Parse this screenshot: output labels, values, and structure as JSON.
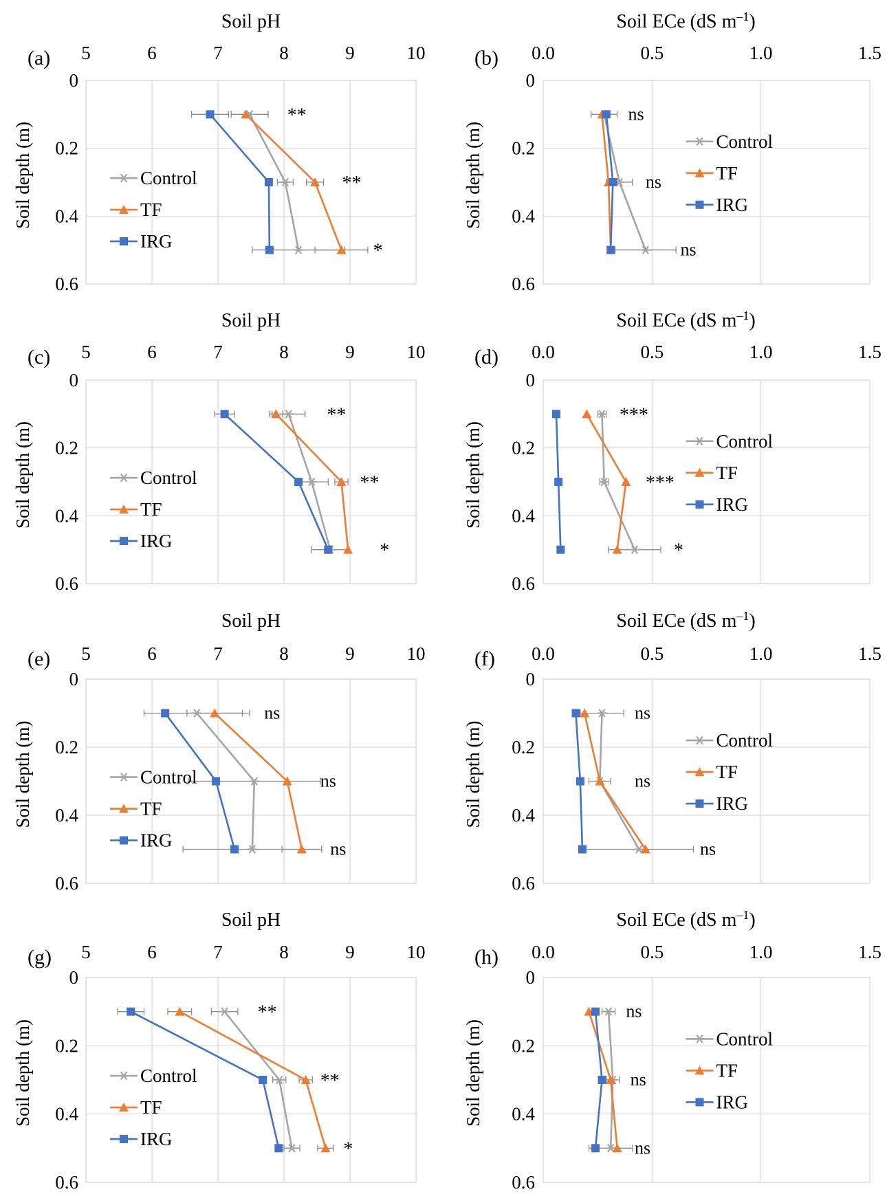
{
  "figure": {
    "colors": {
      "control": "#a5a5a5",
      "tf": "#ed7d31",
      "irg": "#4472c4",
      "grid": "#d9d9d9",
      "frame": "#d9d9d9",
      "errorbar": "#8c8c8c"
    },
    "legend": {
      "control": "Control",
      "tf": "TF",
      "irg": "IRG"
    },
    "common": {
      "ylabel": "Soil depth (m)",
      "y_range": [
        0,
        0.6
      ],
      "y_ticks": [
        "0",
        "0.2",
        "0.4",
        "0.6"
      ],
      "depths": [
        0.1,
        0.3,
        0.5
      ]
    }
  },
  "chart_data": [
    {
      "panel": "(a)",
      "type": "line",
      "title": "Soil pH",
      "xlim": [
        5,
        10
      ],
      "x_ticks": [
        "5",
        "6",
        "7",
        "8",
        "9",
        "10"
      ],
      "legend_position": "left-bottom",
      "series": [
        {
          "name": "Control",
          "x": [
            7.48,
            8.02,
            8.22
          ],
          "err": [
            0.28,
            0.12,
            0.7
          ]
        },
        {
          "name": "TF",
          "x": [
            7.42,
            8.47,
            8.87
          ],
          "err": [
            0.0,
            0.13,
            0.4
          ]
        },
        {
          "name": "IRG",
          "x": [
            6.88,
            7.77,
            7.78
          ],
          "err": [
            0.28,
            0.0,
            0.0
          ]
        }
      ],
      "annotations": [
        {
          "depth": 0.1,
          "x": 8.05,
          "text": "**"
        },
        {
          "depth": 0.3,
          "x": 8.88,
          "text": "**"
        },
        {
          "depth": 0.5,
          "x": 9.35,
          "text": "*"
        }
      ]
    },
    {
      "panel": "(b)",
      "type": "line",
      "title": "Soil ECe (dS m",
      "title_sup": "–1",
      "title_end": ")",
      "xlim": [
        0,
        1.5
      ],
      "x_ticks": [
        "0.0",
        "0.5",
        "1.0",
        "1.5"
      ],
      "legend_position": "right-top",
      "series": [
        {
          "name": "Control",
          "x": [
            0.28,
            0.35,
            0.47
          ],
          "err": [
            0.06,
            0.06,
            0.14
          ]
        },
        {
          "name": "TF",
          "x": [
            0.27,
            0.3,
            0.31
          ],
          "err": [
            0.0,
            0.0,
            0.0
          ]
        },
        {
          "name": "IRG",
          "x": [
            0.29,
            0.32,
            0.31
          ],
          "err": [
            0.0,
            0.0,
            0.0
          ]
        }
      ],
      "annotations": [
        {
          "depth": 0.1,
          "x": 0.39,
          "text": "ns"
        },
        {
          "depth": 0.3,
          "x": 0.47,
          "text": "ns"
        },
        {
          "depth": 0.5,
          "x": 0.63,
          "text": "ns"
        }
      ]
    },
    {
      "panel": "(c)",
      "type": "line",
      "title": "Soil pH",
      "xlim": [
        5,
        10
      ],
      "x_ticks": [
        "5",
        "6",
        "7",
        "8",
        "9",
        "10"
      ],
      "legend_position": "left-bottom",
      "series": [
        {
          "name": "Control",
          "x": [
            8.07,
            8.42,
            8.7
          ],
          "err": [
            0.25,
            0.25,
            0.28
          ]
        },
        {
          "name": "TF",
          "x": [
            7.88,
            8.87,
            8.97
          ],
          "err": [
            0.1,
            0.1,
            0.0
          ]
        },
        {
          "name": "IRG",
          "x": [
            7.1,
            8.22,
            8.67
          ],
          "err": [
            0.15,
            0.0,
            0.0
          ]
        }
      ],
      "annotations": [
        {
          "depth": 0.1,
          "x": 8.65,
          "text": "**"
        },
        {
          "depth": 0.3,
          "x": 9.15,
          "text": "**"
        },
        {
          "depth": 0.5,
          "x": 9.45,
          "text": "*"
        }
      ]
    },
    {
      "panel": "(d)",
      "type": "line",
      "title": "Soil ECe (dS m",
      "title_sup": "–1",
      "title_end": ")",
      "xlim": [
        0,
        1.5
      ],
      "x_ticks": [
        "0.0",
        "0.5",
        "1.0",
        "1.5"
      ],
      "legend_position": "right-top",
      "series": [
        {
          "name": "Control",
          "x": [
            0.27,
            0.28,
            0.42
          ],
          "err": [
            0.02,
            0.02,
            0.12
          ]
        },
        {
          "name": "TF",
          "x": [
            0.2,
            0.38,
            0.34
          ],
          "err": [
            0.0,
            0.0,
            0.0
          ]
        },
        {
          "name": "IRG",
          "x": [
            0.06,
            0.07,
            0.08
          ],
          "err": [
            0.0,
            0.0,
            0.0
          ]
        }
      ],
      "annotations": [
        {
          "depth": 0.1,
          "x": 0.35,
          "text": "***"
        },
        {
          "depth": 0.3,
          "x": 0.47,
          "text": "***"
        },
        {
          "depth": 0.5,
          "x": 0.6,
          "text": "*"
        }
      ]
    },
    {
      "panel": "(e)",
      "type": "line",
      "title": "Soil pH",
      "xlim": [
        5,
        10
      ],
      "x_ticks": [
        "5",
        "6",
        "7",
        "8",
        "9",
        "10"
      ],
      "legend_position": "left-bottom",
      "series": [
        {
          "name": "Control",
          "x": [
            6.68,
            7.55,
            7.52
          ],
          "err": [
            0.8,
            1.0,
            1.05
          ]
        },
        {
          "name": "TF",
          "x": [
            6.95,
            8.05,
            8.27
          ],
          "err": [
            0.42,
            0.0,
            0.3
          ]
        },
        {
          "name": "IRG",
          "x": [
            6.2,
            6.97,
            7.25
          ],
          "err": [
            0.0,
            0.0,
            0.0
          ]
        }
      ],
      "annotations": [
        {
          "depth": 0.1,
          "x": 7.7,
          "text": "ns"
        },
        {
          "depth": 0.3,
          "x": 8.55,
          "text": "ns"
        },
        {
          "depth": 0.5,
          "x": 8.7,
          "text": "ns"
        }
      ]
    },
    {
      "panel": "(f)",
      "type": "line",
      "title": "Soil ECe (dS m",
      "title_sup": "–1",
      "title_end": ")",
      "xlim": [
        0,
        1.5
      ],
      "x_ticks": [
        "0.0",
        "0.5",
        "1.0",
        "1.5"
      ],
      "legend_position": "right-top",
      "series": [
        {
          "name": "Control",
          "x": [
            0.27,
            0.26,
            0.44
          ],
          "err": [
            0.1,
            0.05,
            0.25
          ]
        },
        {
          "name": "TF",
          "x": [
            0.19,
            0.26,
            0.47
          ],
          "err": [
            0.0,
            0.0,
            0.0
          ]
        },
        {
          "name": "IRG",
          "x": [
            0.15,
            0.17,
            0.18
          ],
          "err": [
            0.0,
            0.0,
            0.0
          ]
        }
      ],
      "annotations": [
        {
          "depth": 0.1,
          "x": 0.42,
          "text": "ns"
        },
        {
          "depth": 0.3,
          "x": 0.42,
          "text": "ns"
        },
        {
          "depth": 0.5,
          "x": 0.72,
          "text": "ns"
        }
      ]
    },
    {
      "panel": "(g)",
      "type": "line",
      "title": "Soil pH",
      "xlim": [
        5,
        10
      ],
      "x_ticks": [
        "5",
        "6",
        "7",
        "8",
        "9",
        "10"
      ],
      "legend_position": "left-bottom",
      "series": [
        {
          "name": "Control",
          "x": [
            7.1,
            7.93,
            8.12
          ],
          "err": [
            0.2,
            0.1,
            0.12
          ]
        },
        {
          "name": "TF",
          "x": [
            6.42,
            8.33,
            8.63
          ],
          "err": [
            0.18,
            0.1,
            0.12
          ]
        },
        {
          "name": "IRG",
          "x": [
            5.68,
            7.68,
            7.92
          ],
          "err": [
            0.2,
            0.0,
            0.0
          ]
        }
      ],
      "annotations": [
        {
          "depth": 0.1,
          "x": 7.6,
          "text": "**"
        },
        {
          "depth": 0.3,
          "x": 8.55,
          "text": "**"
        },
        {
          "depth": 0.5,
          "x": 8.9,
          "text": "*"
        }
      ]
    },
    {
      "panel": "(h)",
      "type": "line",
      "title": "Soil ECe (dS m",
      "title_sup": "–1",
      "title_end": ")",
      "xlim": [
        0,
        1.5
      ],
      "x_ticks": [
        "0.0",
        "0.5",
        "1.0",
        "1.5"
      ],
      "legend_position": "right-top",
      "series": [
        {
          "name": "Control",
          "x": [
            0.3,
            0.32,
            0.31
          ],
          "err": [
            0.03,
            0.03,
            0.1
          ]
        },
        {
          "name": "TF",
          "x": [
            0.21,
            0.31,
            0.34
          ],
          "err": [
            0.0,
            0.0,
            0.0
          ]
        },
        {
          "name": "IRG",
          "x": [
            0.24,
            0.27,
            0.24
          ],
          "err": [
            0.0,
            0.0,
            0.0
          ]
        }
      ],
      "annotations": [
        {
          "depth": 0.1,
          "x": 0.38,
          "text": "ns"
        },
        {
          "depth": 0.3,
          "x": 0.4,
          "text": "ns"
        },
        {
          "depth": 0.5,
          "x": 0.42,
          "text": "ns"
        }
      ]
    }
  ]
}
